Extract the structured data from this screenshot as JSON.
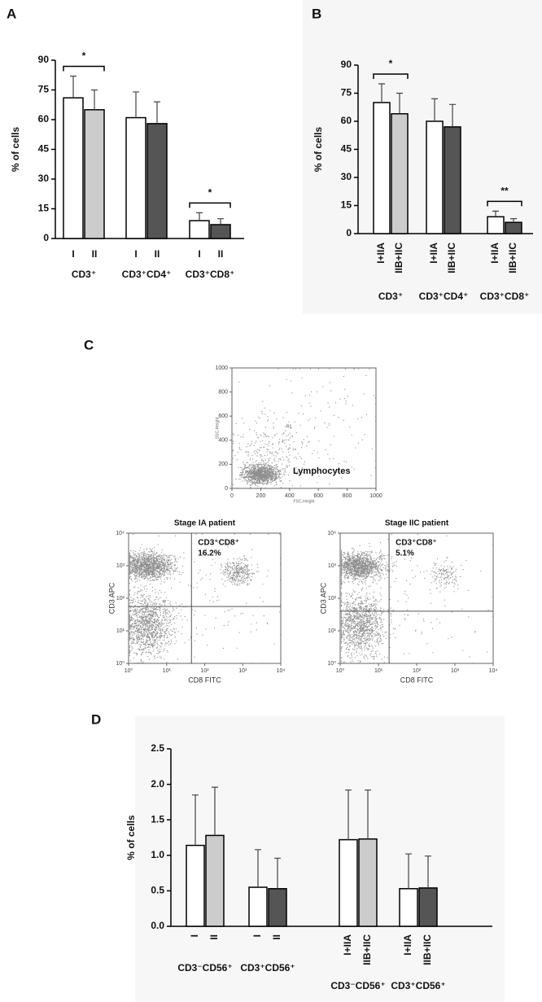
{
  "chart_data": [
    {
      "type": "bar",
      "panel": "A",
      "y_label": "% of cells",
      "ylim": [
        0,
        90
      ],
      "yticks": [
        0,
        15,
        30,
        45,
        60,
        75,
        90
      ],
      "groups": [
        {
          "label": "CD3⁺",
          "significance": "*",
          "bars": [
            {
              "label": "I",
              "value": 71,
              "error": 11,
              "color": "#ffffff"
            },
            {
              "label": "II",
              "value": 65,
              "error": 10,
              "color": "#cccccc"
            }
          ]
        },
        {
          "label": "CD3⁺CD4⁺",
          "bars": [
            {
              "label": "I",
              "value": 61,
              "error": 13,
              "color": "#ffffff"
            },
            {
              "label": "II",
              "value": 58,
              "error": 11,
              "color": "#555555"
            }
          ]
        },
        {
          "label": "CD3⁺CD8⁺",
          "significance": "*",
          "bars": [
            {
              "label": "I",
              "value": 9,
              "error": 4,
              "color": "#ffffff"
            },
            {
              "label": "II",
              "value": 7,
              "error": 3,
              "color": "#555555"
            }
          ]
        }
      ]
    },
    {
      "type": "bar",
      "panel": "B",
      "y_label": "% of cells",
      "ylim": [
        0,
        90
      ],
      "yticks": [
        0,
        15,
        30,
        45,
        60,
        75,
        90
      ],
      "groups": [
        {
          "label": "CD3⁺",
          "significance": "*",
          "bars": [
            {
              "label": "I+IIA",
              "value": 70,
              "error": 10,
              "color": "#ffffff"
            },
            {
              "label": "IIB+IIC",
              "value": 64,
              "error": 11,
              "color": "#cccccc"
            }
          ]
        },
        {
          "label": "CD3⁺CD4⁺",
          "bars": [
            {
              "label": "I+IIA",
              "value": 60,
              "error": 12,
              "color": "#ffffff"
            },
            {
              "label": "IIB+IIC",
              "value": 57,
              "error": 12,
              "color": "#555555"
            }
          ]
        },
        {
          "label": "CD3⁺CD8⁺",
          "significance": "**",
          "bars": [
            {
              "label": "I+IIA",
              "value": 9,
              "error": 3,
              "color": "#ffffff"
            },
            {
              "label": "IIB+IIC",
              "value": 6,
              "error": 2,
              "color": "#555555"
            }
          ]
        }
      ]
    },
    {
      "type": "dotplot",
      "panel": "C",
      "x_label": "FSC-Height",
      "y_label": "SSC-Height",
      "xlim": [
        0,
        1000
      ],
      "ylim": [
        0,
        1000
      ],
      "xticks": [
        0,
        200,
        400,
        600,
        800,
        1000
      ],
      "yticks": [
        0,
        200,
        400,
        600,
        800,
        1000
      ],
      "gate_label": "R1",
      "annotation": "Lymphocytes"
    },
    {
      "type": "dotplot",
      "title": "Stage IA patient",
      "x_label": "CD8 FITC",
      "y_label": "CD3 APC",
      "log": true,
      "xlim": [
        1,
        10000
      ],
      "ylim": [
        1,
        10000
      ],
      "xticks": [
        {
          "value": 1,
          "label": "10⁰"
        },
        {
          "value": 10,
          "label": "10¹"
        },
        {
          "value": 100,
          "label": "10²"
        },
        {
          "value": 1000,
          "label": "10³"
        },
        {
          "value": 10000,
          "label": "10⁴"
        }
      ],
      "yticks": [
        {
          "value": 1,
          "label": "10⁰"
        },
        {
          "value": 10,
          "label": "10¹"
        },
        {
          "value": 100,
          "label": "10²"
        },
        {
          "value": 1000,
          "label": "10³"
        },
        {
          "value": 10000,
          "label": "10⁴"
        }
      ],
      "gate": [
        45,
        56
      ],
      "annotation": "CD3⁺CD8⁺",
      "values": [
        16.2
      ],
      "value_labels": [
        "16.2%"
      ]
    },
    {
      "type": "dotplot",
      "title": "Stage IIC patient",
      "x_label": "CD8 FITC",
      "y_label": "CD3 APC",
      "log": true,
      "xlim": [
        1,
        10000
      ],
      "ylim": [
        1,
        10000
      ],
      "xticks": [
        {
          "value": 1,
          "label": "10⁰"
        },
        {
          "value": 10,
          "label": "10¹"
        },
        {
          "value": 100,
          "label": "10²"
        },
        {
          "value": 1000,
          "label": "10³"
        },
        {
          "value": 10000,
          "label": "10⁴"
        }
      ],
      "yticks": [
        {
          "value": 1,
          "label": "10⁰"
        },
        {
          "value": 10,
          "label": "10¹"
        },
        {
          "value": 100,
          "label": "10²"
        },
        {
          "value": 1000,
          "label": "10³"
        },
        {
          "value": 10000,
          "label": "10⁴"
        }
      ],
      "gate": [
        19,
        40
      ],
      "annotation": "CD3⁺CD8⁺",
      "values": [
        5.1
      ],
      "value_labels": [
        "5.1%"
      ]
    },
    {
      "type": "bar",
      "panel": "D",
      "y_label": "% of cells",
      "ylim": [
        0,
        2.5
      ],
      "yticks": [
        {
          "value": 0,
          "label": "0.0"
        },
        0.5,
        {
          "value": 1,
          "label": "1.0"
        },
        1.5,
        {
          "value": 2,
          "label": "2.0"
        },
        2.5
      ],
      "groups": [
        {
          "label": "CD3⁻CD56⁺",
          "bars": [
            {
              "label": "I",
              "value": 1.14,
              "error": 0.71,
              "color": "#ffffff"
            },
            {
              "label": "II",
              "value": 1.28,
              "error": 0.68,
              "color": "#cccccc"
            }
          ]
        },
        {
          "label": "CD3⁺CD56⁺",
          "bars": [
            {
              "label": "I",
              "value": 0.55,
              "error": 0.53,
              "color": "#ffffff"
            },
            {
              "label": "II",
              "value": 0.53,
              "error": 0.43,
              "color": "#555555"
            }
          ]
        },
        {
          "label": "CD3⁻CD56⁺",
          "bars": [
            {
              "label": "I+IIA",
              "value": 1.22,
              "error": 0.7,
              "color": "#ffffff"
            },
            {
              "label": "IIB+IIC",
              "value": 1.23,
              "error": 0.69,
              "color": "#cccccc"
            }
          ]
        },
        {
          "label": "CD3⁺CD56⁺",
          "bars": [
            {
              "label": "I+IIA",
              "value": 0.53,
              "error": 0.49,
              "color": "#ffffff"
            },
            {
              "label": "IIB+IIC",
              "value": 0.54,
              "error": 0.45,
              "color": "#555555"
            }
          ]
        }
      ]
    }
  ]
}
